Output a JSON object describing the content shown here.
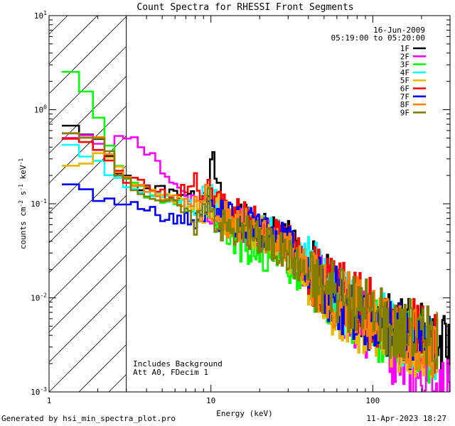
{
  "chart_data": {
    "type": "line",
    "title": "Count Spectra for RHESSI Front Segments",
    "xlabel": "Energy (keV)",
    "ylabel": "counts cm-2 s-1 keV-1",
    "xscale": "log",
    "yscale": "log",
    "xlim": [
      1,
      300
    ],
    "ylim": [
      0.001,
      10
    ],
    "xticks": [
      {
        "value": 1,
        "label": "1"
      },
      {
        "value": 10,
        "label": "10"
      },
      {
        "value": 100,
        "label": "100"
      }
    ],
    "yticks": [
      {
        "value": 0.001,
        "base": "10",
        "exp": "-3"
      },
      {
        "value": 0.01,
        "base": "10",
        "exp": "-2"
      },
      {
        "value": 0.1,
        "base": "10",
        "exp": "-1"
      },
      {
        "value": 1,
        "base": "10",
        "exp": "0"
      },
      {
        "value": 10,
        "base": "10",
        "exp": "1"
      }
    ],
    "hatched_region_xmax": 3,
    "date": "16-Jun-2009",
    "time_range": "05:19:00 to 05:20:00",
    "annotations": [
      "Includes Background",
      "Att A0, FDecim 1"
    ],
    "series": [
      {
        "name": "1F",
        "color": "#000000",
        "points": [
          [
            1.2,
            0.68
          ],
          [
            1.5,
            0.6
          ],
          [
            2,
            0.45
          ],
          [
            2.5,
            0.28
          ],
          [
            3,
            0.18
          ],
          [
            4,
            0.15
          ],
          [
            5,
            0.14
          ],
          [
            6,
            0.13
          ],
          [
            7,
            0.13
          ],
          [
            8,
            0.115
          ],
          [
            9,
            0.13
          ],
          [
            10,
            0.2
          ],
          [
            10.5,
            0.27
          ],
          [
            11,
            0.13
          ],
          [
            12,
            0.09
          ],
          [
            14,
            0.075
          ],
          [
            17,
            0.065
          ],
          [
            20,
            0.055
          ],
          [
            25,
            0.05
          ],
          [
            30,
            0.045
          ],
          [
            40,
            0.02
          ],
          [
            50,
            0.015
          ],
          [
            60,
            0.011
          ],
          [
            80,
            0.008
          ],
          [
            100,
            0.0065
          ],
          [
            130,
            0.005
          ],
          [
            160,
            0.0045
          ],
          [
            200,
            0.004
          ],
          [
            250,
            0.003
          ],
          [
            300,
            0.0028
          ]
        ]
      },
      {
        "name": "2F",
        "color": "#ff00ff",
        "points": [
          [
            1.2,
            0.45
          ],
          [
            1.5,
            0.47
          ],
          [
            2,
            0.48
          ],
          [
            2.5,
            0.46
          ],
          [
            3,
            0.46
          ],
          [
            3.5,
            0.44
          ],
          [
            4,
            0.36
          ],
          [
            5,
            0.24
          ],
          [
            6,
            0.16
          ],
          [
            7,
            0.13
          ],
          [
            8,
            0.11
          ],
          [
            9,
            0.1
          ],
          [
            10,
            0.08
          ],
          [
            12,
            0.07
          ],
          [
            15,
            0.06
          ],
          [
            20,
            0.048
          ],
          [
            25,
            0.04
          ],
          [
            30,
            0.03
          ],
          [
            40,
            0.017
          ],
          [
            50,
            0.012
          ],
          [
            60,
            0.009
          ],
          [
            80,
            0.006
          ],
          [
            100,
            0.0045
          ],
          [
            130,
            0.0025
          ],
          [
            160,
            0.0018
          ],
          [
            200,
            0.0013
          ],
          [
            250,
            0.0011
          ],
          [
            300,
            0.001
          ]
        ]
      },
      {
        "name": "3F",
        "color": "#00ff00",
        "points": [
          [
            1.2,
            2.2
          ],
          [
            1.4,
            2.3
          ],
          [
            1.6,
            1.9
          ],
          [
            1.8,
            1.4
          ],
          [
            2,
            0.9
          ],
          [
            2.3,
            0.45
          ],
          [
            2.6,
            0.25
          ],
          [
            3,
            0.18
          ],
          [
            3.5,
            0.15
          ],
          [
            4,
            0.13
          ],
          [
            5,
            0.11
          ],
          [
            6,
            0.1
          ],
          [
            7,
            0.09
          ],
          [
            8,
            0.08
          ],
          [
            9,
            0.08
          ],
          [
            10,
            0.09
          ],
          [
            11,
            0.07
          ],
          [
            12,
            0.05
          ],
          [
            14,
            0.04
          ],
          [
            17,
            0.035
          ],
          [
            20,
            0.03
          ],
          [
            25,
            0.028
          ],
          [
            30,
            0.022
          ],
          [
            40,
            0.015
          ],
          [
            50,
            0.011
          ],
          [
            60,
            0.008
          ],
          [
            80,
            0.0065
          ],
          [
            100,
            0.005
          ],
          [
            130,
            0.004
          ],
          [
            160,
            0.0035
          ],
          [
            200,
            0.003
          ],
          [
            250,
            0.0025
          ]
        ]
      },
      {
        "name": "4F",
        "color": "#00ffff",
        "points": [
          [
            1.2,
            0.45
          ],
          [
            1.3,
            0.4
          ],
          [
            1.5,
            0.32
          ],
          [
            2,
            0.28
          ],
          [
            2.5,
            0.2
          ],
          [
            3,
            0.15
          ],
          [
            4,
            0.14
          ],
          [
            5,
            0.12
          ],
          [
            6,
            0.11
          ],
          [
            7,
            0.1
          ],
          [
            8,
            0.1
          ],
          [
            9,
            0.1
          ],
          [
            10,
            0.12
          ],
          [
            11,
            0.09
          ],
          [
            12,
            0.08
          ],
          [
            15,
            0.065
          ],
          [
            20,
            0.06
          ],
          [
            25,
            0.045
          ],
          [
            30,
            0.035
          ],
          [
            40,
            0.022
          ],
          [
            50,
            0.014
          ],
          [
            60,
            0.01
          ],
          [
            80,
            0.0075
          ],
          [
            100,
            0.006
          ],
          [
            130,
            0.0045
          ],
          [
            160,
            0.004
          ],
          [
            200,
            0.0035
          ],
          [
            250,
            0.003
          ]
        ]
      },
      {
        "name": "5F",
        "color": "#e6b800",
        "points": [
          [
            1.2,
            0.28
          ],
          [
            1.5,
            0.3
          ],
          [
            2,
            0.31
          ],
          [
            2.5,
            0.28
          ],
          [
            3,
            0.2
          ],
          [
            4,
            0.14
          ],
          [
            5,
            0.12
          ],
          [
            6,
            0.11
          ],
          [
            7,
            0.1
          ],
          [
            8,
            0.1
          ],
          [
            9,
            0.09
          ],
          [
            10,
            0.1
          ],
          [
            11,
            0.08
          ],
          [
            12,
            0.07
          ],
          [
            15,
            0.06
          ],
          [
            20,
            0.05
          ],
          [
            25,
            0.04
          ],
          [
            30,
            0.03
          ],
          [
            40,
            0.018
          ],
          [
            50,
            0.011
          ],
          [
            60,
            0.008
          ],
          [
            80,
            0.0055
          ],
          [
            100,
            0.0045
          ],
          [
            130,
            0.0038
          ],
          [
            160,
            0.0035
          ],
          [
            200,
            0.003
          ],
          [
            250,
            0.0028
          ]
        ]
      },
      {
        "name": "6F",
        "color": "#ff0000",
        "points": [
          [
            1.2,
            0.62
          ],
          [
            1.5,
            0.5
          ],
          [
            2,
            0.42
          ],
          [
            2.5,
            0.27
          ],
          [
            3,
            0.18
          ],
          [
            4,
            0.15
          ],
          [
            5,
            0.13
          ],
          [
            6,
            0.12
          ],
          [
            7,
            0.15
          ],
          [
            8,
            0.14
          ],
          [
            9,
            0.15
          ],
          [
            10,
            0.16
          ],
          [
            11,
            0.1
          ],
          [
            12,
            0.09
          ],
          [
            14,
            0.08
          ],
          [
            17,
            0.075
          ],
          [
            20,
            0.06
          ],
          [
            25,
            0.05
          ],
          [
            30,
            0.04
          ],
          [
            40,
            0.02
          ],
          [
            50,
            0.015
          ],
          [
            60,
            0.012
          ],
          [
            80,
            0.009
          ],
          [
            100,
            0.007
          ],
          [
            130,
            0.0055
          ],
          [
            160,
            0.005
          ],
          [
            200,
            0.004
          ],
          [
            250,
            0.0035
          ]
        ]
      },
      {
        "name": "7F",
        "color": "#0000ff",
        "points": [
          [
            1.2,
            0.2
          ],
          [
            1.5,
            0.16
          ],
          [
            1.8,
            0.12
          ],
          [
            2,
            0.11
          ],
          [
            2.5,
            0.1
          ],
          [
            3,
            0.11
          ],
          [
            4,
            0.085
          ],
          [
            5,
            0.075
          ],
          [
            6,
            0.07
          ],
          [
            7,
            0.07
          ],
          [
            8,
            0.065
          ],
          [
            9,
            0.07
          ],
          [
            10,
            0.09
          ],
          [
            11,
            0.08
          ],
          [
            12,
            0.075
          ],
          [
            15,
            0.065
          ],
          [
            20,
            0.055
          ],
          [
            25,
            0.045
          ],
          [
            30,
            0.04
          ],
          [
            40,
            0.02
          ],
          [
            50,
            0.014
          ],
          [
            60,
            0.01
          ],
          [
            80,
            0.007
          ],
          [
            100,
            0.0055
          ],
          [
            130,
            0.0045
          ],
          [
            160,
            0.004
          ],
          [
            200,
            0.0035
          ],
          [
            250,
            0.0028
          ]
        ]
      },
      {
        "name": "8F",
        "color": "#ff8000",
        "points": [
          [
            1.2,
            0.62
          ],
          [
            1.5,
            0.6
          ],
          [
            2,
            0.5
          ],
          [
            2.5,
            0.3
          ],
          [
            3,
            0.17
          ],
          [
            4,
            0.14
          ],
          [
            5,
            0.12
          ],
          [
            6,
            0.11
          ],
          [
            7,
            0.1
          ],
          [
            8,
            0.1
          ],
          [
            9,
            0.1
          ],
          [
            10,
            0.11
          ],
          [
            11,
            0.08
          ],
          [
            12,
            0.07
          ],
          [
            15,
            0.06
          ],
          [
            20,
            0.05
          ],
          [
            25,
            0.04
          ],
          [
            30,
            0.035
          ],
          [
            40,
            0.02
          ],
          [
            50,
            0.014
          ],
          [
            60,
            0.01
          ],
          [
            80,
            0.0075
          ],
          [
            100,
            0.006
          ],
          [
            130,
            0.0048
          ],
          [
            160,
            0.0042
          ],
          [
            200,
            0.0036
          ],
          [
            250,
            0.003
          ]
        ]
      },
      {
        "name": "9F",
        "color": "#808000",
        "points": [
          [
            1.2,
            0.65
          ],
          [
            1.5,
            0.55
          ],
          [
            2,
            0.45
          ],
          [
            2.5,
            0.28
          ],
          [
            3,
            0.17
          ],
          [
            4,
            0.13
          ],
          [
            5,
            0.11
          ],
          [
            6,
            0.1
          ],
          [
            7,
            0.08
          ],
          [
            8,
            0.07
          ],
          [
            9,
            0.08
          ],
          [
            10,
            0.1
          ],
          [
            11,
            0.07
          ],
          [
            12,
            0.06
          ],
          [
            15,
            0.05
          ],
          [
            20,
            0.045
          ],
          [
            25,
            0.035
          ],
          [
            30,
            0.03
          ],
          [
            40,
            0.018
          ],
          [
            50,
            0.013
          ],
          [
            60,
            0.01
          ],
          [
            80,
            0.008
          ],
          [
            100,
            0.0065
          ],
          [
            130,
            0.005
          ],
          [
            160,
            0.0045
          ],
          [
            200,
            0.004
          ],
          [
            250,
            0.0035
          ]
        ]
      }
    ]
  },
  "footer": {
    "generated_by": "Generated by hsi_min_spectra_plot.pro",
    "timestamp": "11-Apr-2023 18:27"
  }
}
